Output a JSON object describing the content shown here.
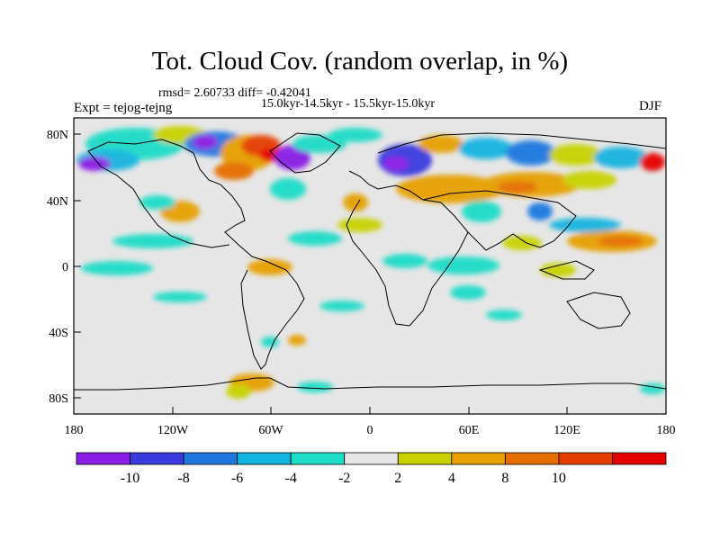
{
  "title": "Tot. Cloud Cov. (random overlap, in %)",
  "stats_line": "rmsd= 2.60733 diff= -0.42041",
  "period_line": "15.0kyr-14.5kyr - 15.5kyr-15.0kyr",
  "experiment_line": "Expt = tejog-tejng",
  "season": "DJF",
  "lat_ticks": [
    "80N",
    "40N",
    "0",
    "40S",
    "80S"
  ],
  "lon_ticks": [
    "180",
    "120W",
    "60W",
    "0",
    "60E",
    "120E",
    "180"
  ],
  "colorbar": {
    "labels": [
      "-10",
      "-8",
      "-6",
      "-4",
      "-2",
      "2",
      "4",
      "8",
      "10"
    ],
    "colors": [
      "#8a1ee6",
      "#3a3adf",
      "#1e78e0",
      "#14b4e0",
      "#1edcc8",
      "#e6e6e6",
      "#c8d200",
      "#e6a000",
      "#e66e00",
      "#e63c00",
      "#e60000"
    ]
  },
  "map_background": "#e6e6e6"
}
